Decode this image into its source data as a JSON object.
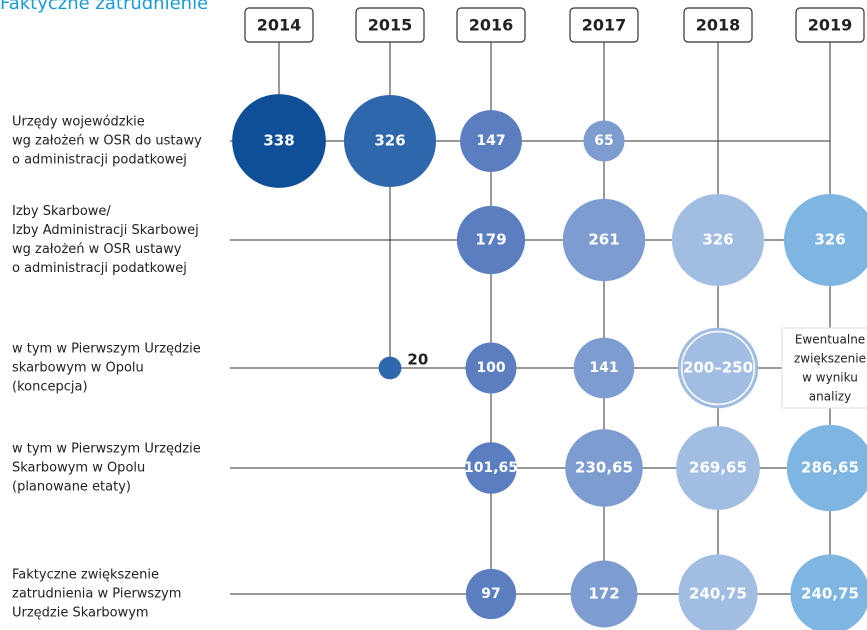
{
  "chart_data": {
    "type": "bubble-matrix",
    "title": "Faktyczne zatrudnienie",
    "columns": [
      "2014",
      "2015",
      "2016",
      "2017",
      "2018",
      "2019"
    ],
    "colors": [
      "#0e4f97",
      "#2f67ad",
      "#5a7ec0",
      "#7d9ccf",
      "#a2bde2",
      "#7fb5e1"
    ],
    "rows": [
      {
        "label": [
          "Urzędy wojewódzkie",
          "wg założeń w OSR do ustawy",
          "o administracji podatkowej"
        ],
        "values": [
          338,
          326,
          147,
          65,
          null,
          null
        ]
      },
      {
        "label": [
          "Izby Skarbowe/",
          "Izby Administracji Skarbowej",
          "wg założeń w OSR ustawy",
          "o administracji podatkowej"
        ],
        "values": [
          null,
          null,
          179,
          261,
          326,
          326
        ]
      },
      {
        "label": [
          "w tym w Pierwszym Urzędzie",
          "skarbowym w Opolu",
          "(koncepcja)"
        ],
        "values": [
          null,
          20,
          100,
          141,
          [
            200,
            250
          ],
          null
        ],
        "value_labels": [
          null,
          null,
          null,
          null,
          "200–250",
          null
        ]
      },
      {
        "label": [
          "w tym w Pierwszym Urzędzie",
          "Skarbowym w Opolu",
          "(planowane etaty)"
        ],
        "values": [
          null,
          null,
          101.65,
          230.65,
          269.65,
          286.65
        ],
        "value_labels": [
          null,
          null,
          "101,65",
          "230,65",
          "269,65",
          "286,65"
        ]
      },
      {
        "label": [
          "Faktyczne zwiększenie",
          "zatrudnienia w Pierwszym",
          "Urzędzie Skarbowym"
        ],
        "values": [
          null,
          null,
          97,
          172,
          240.75,
          240.75
        ],
        "value_labels": [
          null,
          null,
          null,
          null,
          "240,75",
          "240,75"
        ]
      }
    ],
    "annotation": {
      "row": 2,
      "column": 5,
      "lines": [
        "Ewentualne",
        "zwiększenie",
        "w wyniku",
        "analizy"
      ]
    }
  }
}
